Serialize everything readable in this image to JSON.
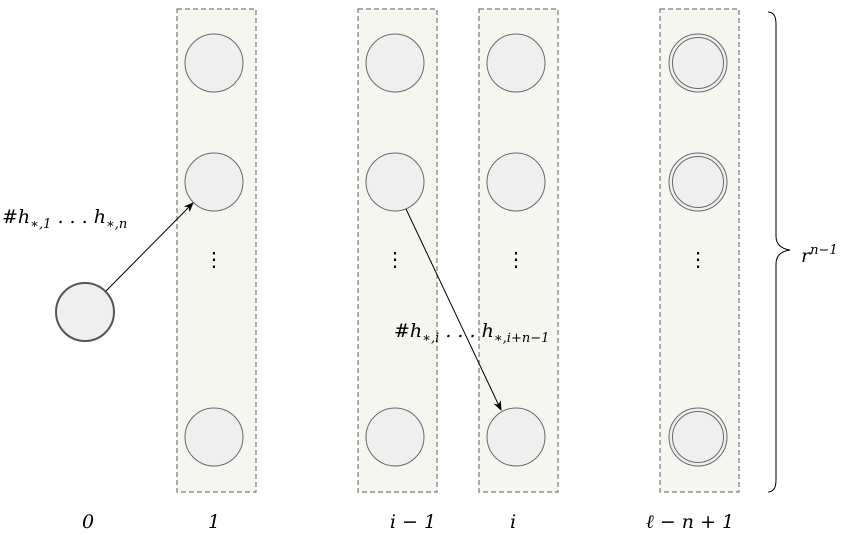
{
  "columns": [
    {
      "label": "0"
    },
    {
      "label": "1"
    },
    {
      "label": "i − 1"
    },
    {
      "label": "i"
    },
    {
      "label": "ℓ − n + 1"
    }
  ],
  "edges": [
    {
      "label_prefix": "#h",
      "label_sub1": "∗,1",
      "label_mid": " . . . h",
      "label_sub2": "∗,n"
    },
    {
      "label_prefix": "#h",
      "label_sub1": "∗,i",
      "label_mid": " . . . h",
      "label_sub2": "∗,i+n−1"
    }
  ],
  "brace_label": {
    "base": "r",
    "exponent": "n−1"
  },
  "ellipsis_symbol": "⋮"
}
